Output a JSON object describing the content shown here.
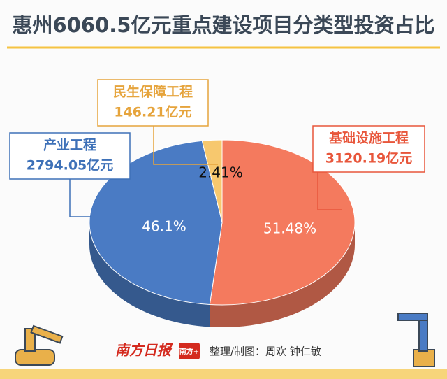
{
  "chart_data": {
    "type": "pie",
    "title": "惠州6060.5亿元重点建设项目分类型投资占比",
    "categories": [
      "基础设施工程",
      "产业工程",
      "民生保障工程"
    ],
    "values": [
      51.48,
      46.1,
      2.41
    ],
    "value_labels": [
      "51.48%",
      "46.1%",
      "2.41%"
    ],
    "amount_labels": [
      "3120.19亿元",
      "2794.05亿元",
      "146.21亿元"
    ],
    "colors": [
      "#f47a5e",
      "#4a7bc4",
      "#f7c86e"
    ]
  },
  "footer": {
    "brand": "南方日报",
    "logo": "南方+",
    "credit": "整理/制图：周欢 钟仁敏"
  }
}
